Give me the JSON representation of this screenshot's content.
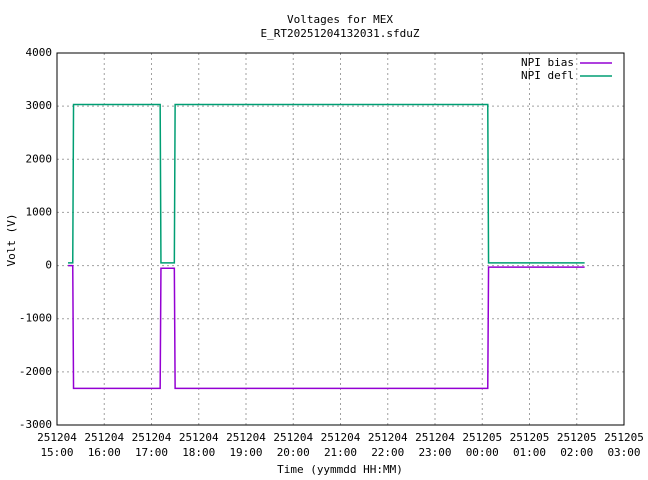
{
  "chart_data": {
    "type": "line",
    "title": "Voltages for MEX",
    "subtitle": "E_RT20251204132031.sfduZ",
    "x_label": "Time (yymmdd HH:MM)",
    "y_label": "Volt (V)",
    "x": [
      "251204 15:14",
      "251204 15:20",
      "251204 15:21",
      "251204 17:11",
      "251204 17:12",
      "251204 17:29",
      "251204 17:30",
      "251205 00:07",
      "251205 00:08",
      "251205 02:10"
    ],
    "series": [
      {
        "name": "NPI bias",
        "color": "#9400d3",
        "values": [
          0,
          0,
          -2310,
          -2310,
          -50,
          -50,
          -2310,
          -2310,
          -30,
          -30
        ]
      },
      {
        "name": "NPI defl",
        "color": "#009e73",
        "values": [
          50,
          50,
          3030,
          3030,
          50,
          50,
          3030,
          3030,
          50,
          50
        ]
      }
    ],
    "xlim": [
      "251204 15:00",
      "251205 03:00"
    ],
    "xticks": [
      "251204 15:00",
      "251204 16:00",
      "251204 17:00",
      "251204 18:00",
      "251204 19:00",
      "251204 20:00",
      "251204 21:00",
      "251204 22:00",
      "251204 23:00",
      "251205 00:00",
      "251205 01:00",
      "251205 02:00",
      "251205 03:00"
    ],
    "ylim": [
      -3000,
      4000
    ],
    "yticks": [
      -3000,
      -2000,
      -1000,
      0,
      1000,
      2000,
      3000,
      4000
    ],
    "grid": true,
    "legend": "top-right"
  }
}
